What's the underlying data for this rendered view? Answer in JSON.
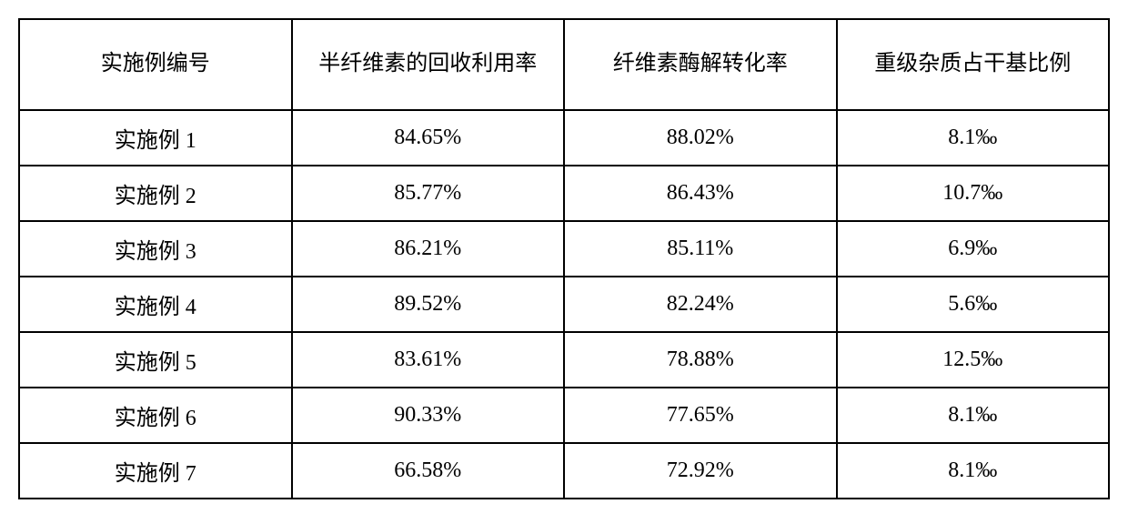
{
  "table": {
    "type": "table",
    "background_color": "#ffffff",
    "border_color": "#000000",
    "text_color": "#000000",
    "font_size": 24,
    "header_font_size": 24,
    "columns": [
      {
        "label": "实施例编号",
        "width": "25%",
        "align": "center"
      },
      {
        "label": "半纤维素的回收利用率",
        "width": "25%",
        "align": "center"
      },
      {
        "label": "纤维素酶解转化率",
        "width": "25%",
        "align": "center"
      },
      {
        "label": "重级杂质占干基比例",
        "width": "25%",
        "align": "center"
      }
    ],
    "rows": [
      [
        "实施例 1",
        "84.65%",
        "88.02%",
        "8.1‰"
      ],
      [
        "实施例 2",
        "85.77%",
        "86.43%",
        "10.7‰"
      ],
      [
        "实施例 3",
        "86.21%",
        "85.11%",
        "6.9‰"
      ],
      [
        "实施例 4",
        "89.52%",
        "82.24%",
        "5.6‰"
      ],
      [
        "实施例 5",
        "83.61%",
        "78.88%",
        "12.5‰"
      ],
      [
        "实施例 6",
        "90.33%",
        "77.65%",
        "8.1‰"
      ],
      [
        "实施例 7",
        "66.58%",
        "72.92%",
        "8.1‰"
      ]
    ]
  }
}
